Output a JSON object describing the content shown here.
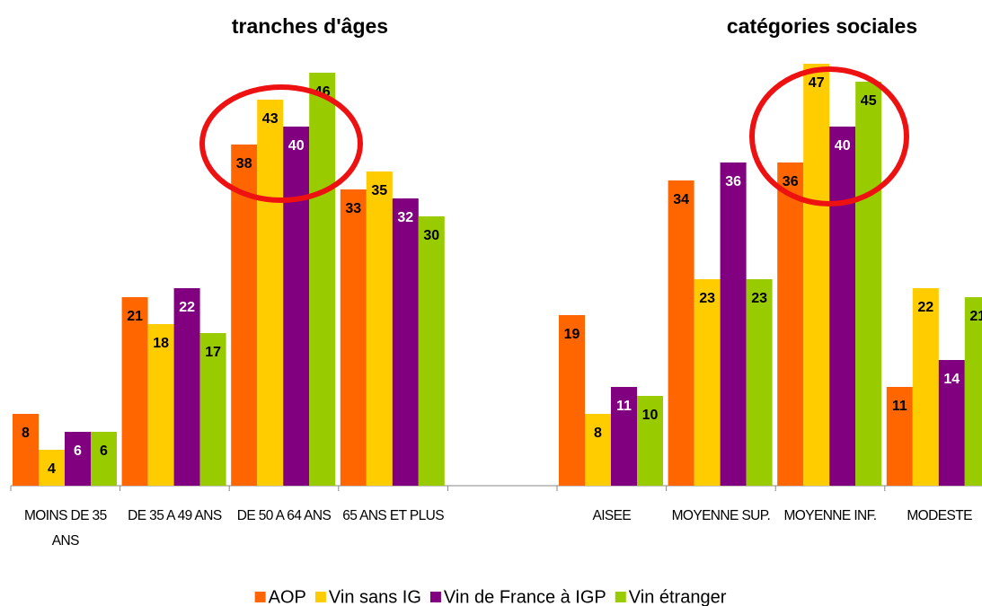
{
  "chart_data": {
    "type": "bar",
    "annotations": [
      "tranches d'âges",
      "catégories sociales"
    ],
    "categories": [
      "MOINS DE 35 ANS",
      "DE 35 A 49 ANS",
      "DE 50 A 64 ANS",
      "65 ANS ET PLUS",
      null,
      "AISEE",
      "MOYENNE SUP.",
      "MOYENNE INF.",
      "MODESTE"
    ],
    "series": [
      {
        "name": "AOP",
        "color": "#ff6600",
        "values": [
          8,
          21,
          38,
          33,
          null,
          19,
          34,
          36,
          11
        ]
      },
      {
        "name": "Vin sans IG",
        "color": "#ffcc00",
        "values": [
          4,
          18,
          43,
          35,
          null,
          8,
          23,
          47,
          22
        ]
      },
      {
        "name": "Vin de France à IGP",
        "color": "#800080",
        "values": [
          6,
          22,
          40,
          32,
          null,
          11,
          36,
          40,
          14
        ]
      },
      {
        "name": "Vin étranger",
        "color": "#99cc00",
        "values": [
          6,
          17,
          46,
          30,
          null,
          10,
          23,
          45,
          21
        ]
      }
    ],
    "ylim": [
      0,
      54
    ],
    "legend": "bottom"
  }
}
